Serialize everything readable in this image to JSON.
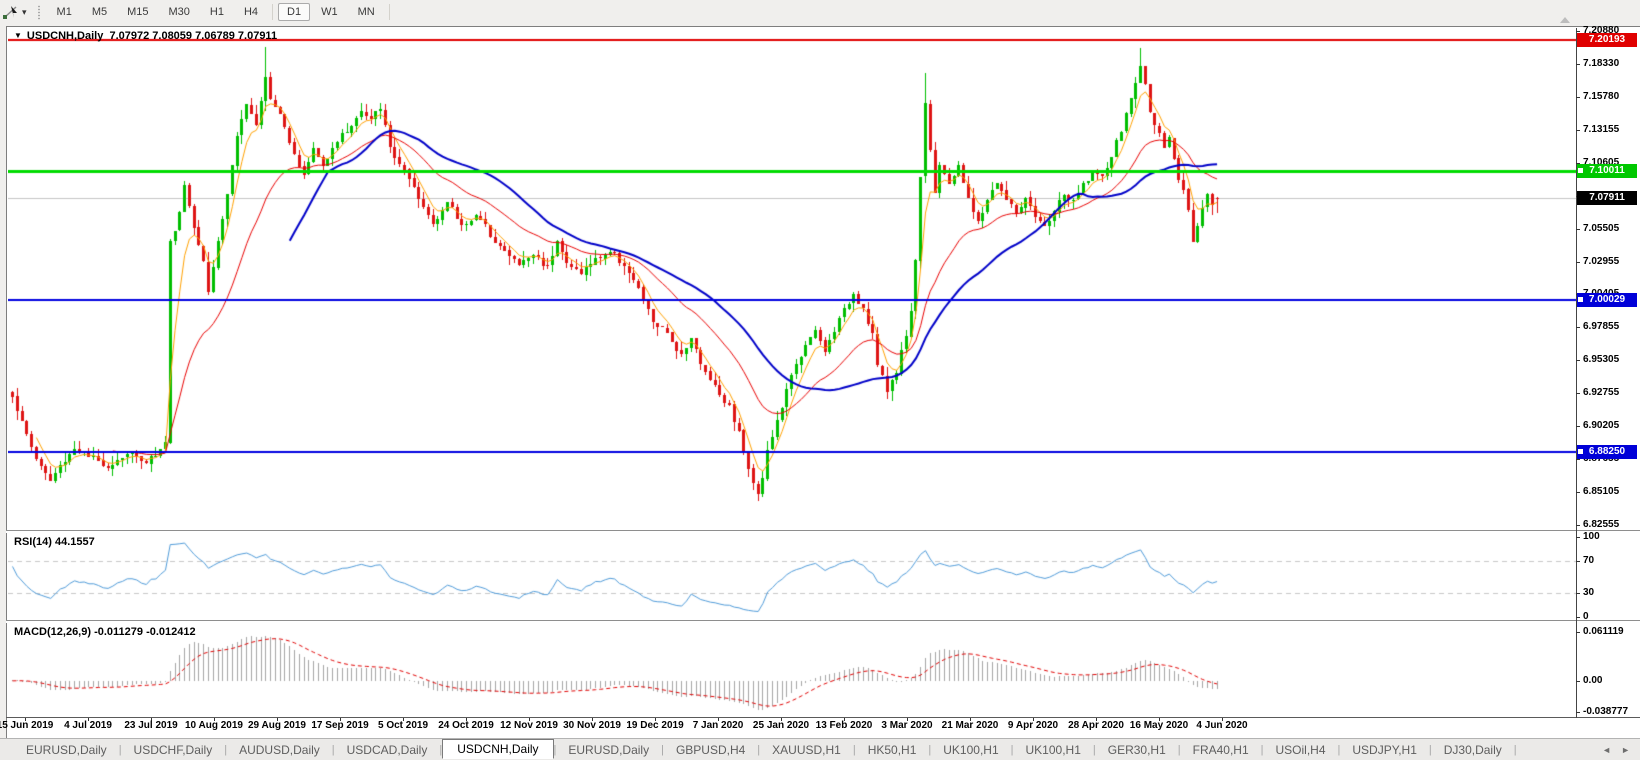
{
  "toolbar": {
    "timeframes": [
      "M1",
      "M5",
      "M15",
      "M30",
      "H1",
      "H4",
      "D1",
      "W1",
      "MN"
    ],
    "active_timeframe": "D1"
  },
  "icons": {
    "line_studies_caret": "▾",
    "chart_dropdown": "▼",
    "tab_left_arrow": "◄",
    "tab_right_arrow": "►"
  },
  "chart": {
    "symbol_label": "USDCNH,Daily",
    "ohlc_text": "7.07972 7.08059 7.06789 7.07911",
    "price_ticks": [
      "7.20880",
      "7.18330",
      "7.15780",
      "7.13155",
      "7.10605",
      "7.08055",
      "7.05505",
      "7.02955",
      "7.00405",
      "6.97855",
      "6.95305",
      "6.92755",
      "6.90205",
      "6.87655",
      "6.85105",
      "6.82555"
    ],
    "date_labels": [
      "15 Jun 2019",
      "4 Jul 2019",
      "23 Jul 2019",
      "10 Aug 2019",
      "29 Aug 2019",
      "17 Sep 2019",
      "5 Oct 2019",
      "24 Oct 2019",
      "12 Nov 2019",
      "30 Nov 2019",
      "19 Dec 2019",
      "7 Jan 2020",
      "25 Jan 2020",
      "13 Feb 2020",
      "3 Mar 2020",
      "21 Mar 2020",
      "9 Apr 2020",
      "28 Apr 2020",
      "16 May 2020",
      "4 Jun 2020"
    ],
    "levels": [
      {
        "name": "resistance-line",
        "label": "7.20193",
        "price": 7.20193,
        "line_color": "#E00000",
        "line_width": 2,
        "badge_bg": "#E00000",
        "marker": false,
        "under": false
      },
      {
        "name": "green-level-line",
        "label": "7.10011",
        "price": 7.10011,
        "line_color": "#00DC00",
        "line_width": 3,
        "badge_bg": "#00C800",
        "marker": true,
        "under": false
      },
      {
        "name": "current-price-line",
        "label": "7.07911",
        "price": 7.07911,
        "line_color": "#C4C4C4",
        "line_width": 1,
        "badge_bg": "#000000",
        "marker": false,
        "under": true
      },
      {
        "name": "support-line-7",
        "label": "7.00029",
        "price": 7.00029,
        "line_color": "#0000E0",
        "line_width": 2,
        "badge_bg": "#0000D8",
        "marker": true,
        "under": false
      },
      {
        "name": "support-line-688",
        "label": "6.88250",
        "price": 6.8825,
        "line_color": "#0000E0",
        "line_width": 2,
        "badge_bg": "#0000D8",
        "marker": true,
        "under": false
      }
    ]
  },
  "rsi_panel": {
    "label": "RSI(14) 44.1557",
    "ticks": [
      {
        "value": 100,
        "label": "100"
      },
      {
        "value": 70,
        "label": "70"
      },
      {
        "value": 30,
        "label": "30"
      },
      {
        "value": 0,
        "label": "0"
      }
    ],
    "level_high": 70,
    "level_low": 30,
    "line_color": "#4E9AD8",
    "level_color": "#C6C6C6"
  },
  "macd_panel": {
    "label": "MACD(12,26,9) -0.011279 -0.012412",
    "ticks": [
      {
        "value": 0.061119,
        "label": "0.061119"
      },
      {
        "value": 0,
        "label": "0.00"
      },
      {
        "value": -0.038777,
        "label": "-0.038777"
      }
    ],
    "hist_color": "#A4A4A4",
    "signal_color": "#E00000"
  },
  "tabs": {
    "items": [
      "EURUSD,Daily",
      "USDCHF,Daily",
      "AUDUSD,Daily",
      "USDCAD,Daily",
      "USDCNH,Daily",
      "EURUSD,Daily",
      "GBPUSD,H4",
      "XAUUSD,H1",
      "HK50,H1",
      "UK100,H1",
      "UK100,H1",
      "GER30,H1",
      "FRA40,H1",
      "USOil,H4",
      "USDJPY,H1",
      "DJ30,Daily"
    ],
    "active_index": 4
  },
  "chart_data": {
    "type": "candlestick",
    "symbol": "USDCNH",
    "timeframe": "Daily",
    "visible_range": {
      "start": "15 Jun 2019",
      "end": "12 Jun 2020"
    },
    "num_candles": 253,
    "current_ohlc": {
      "open": 7.07972,
      "high": 7.08059,
      "low": 7.06789,
      "close": 7.07911
    },
    "last_candle": [
      7.07972,
      7.08059,
      7.06789,
      7.07911
    ],
    "colors": {
      "bull": "#00BE00",
      "bear": "#DE1414"
    },
    "price_path_keypoints": [
      [
        0,
        6.927
      ],
      [
        2,
        6.905
      ],
      [
        5,
        6.878
      ],
      [
        8,
        6.86
      ],
      [
        10,
        6.872
      ],
      [
        13,
        6.886
      ],
      [
        16,
        6.879
      ],
      [
        20,
        6.872
      ],
      [
        24,
        6.882
      ],
      [
        28,
        6.876
      ],
      [
        31,
        6.884
      ],
      [
        32,
        6.892
      ],
      [
        33,
        7.045
      ],
      [
        35,
        7.068
      ],
      [
        36,
        7.09
      ],
      [
        38,
        7.058
      ],
      [
        40,
        7.032
      ],
      [
        41,
        7.008
      ],
      [
        43,
        7.046
      ],
      [
        45,
        7.082
      ],
      [
        47,
        7.128
      ],
      [
        49,
        7.15
      ],
      [
        51,
        7.138
      ],
      [
        53,
        7.174
      ],
      [
        54,
        7.158
      ],
      [
        56,
        7.146
      ],
      [
        58,
        7.124
      ],
      [
        61,
        7.096
      ],
      [
        63,
        7.118
      ],
      [
        65,
        7.104
      ],
      [
        67,
        7.12
      ],
      [
        70,
        7.132
      ],
      [
        73,
        7.146
      ],
      [
        75,
        7.14
      ],
      [
        77,
        7.15
      ],
      [
        79,
        7.118
      ],
      [
        82,
        7.1
      ],
      [
        85,
        7.078
      ],
      [
        88,
        7.06
      ],
      [
        91,
        7.076
      ],
      [
        94,
        7.058
      ],
      [
        97,
        7.066
      ],
      [
        100,
        7.052
      ],
      [
        103,
        7.038
      ],
      [
        106,
        7.028
      ],
      [
        109,
        7.036
      ],
      [
        112,
        7.026
      ],
      [
        114,
        7.048
      ],
      [
        116,
        7.028
      ],
      [
        119,
        7.022
      ],
      [
        122,
        7.032
      ],
      [
        125,
        7.038
      ],
      [
        128,
        7.028
      ],
      [
        131,
        7.008
      ],
      [
        134,
        6.984
      ],
      [
        137,
        6.974
      ],
      [
        140,
        6.958
      ],
      [
        142,
        6.972
      ],
      [
        144,
        6.95
      ],
      [
        146,
        6.94
      ],
      [
        148,
        6.928
      ],
      [
        150,
        6.918
      ],
      [
        152,
        6.898
      ],
      [
        154,
        6.868
      ],
      [
        156,
        6.852
      ],
      [
        157,
        6.864
      ],
      [
        158,
        6.884
      ],
      [
        160,
        6.906
      ],
      [
        162,
        6.93
      ],
      [
        164,
        6.952
      ],
      [
        166,
        6.964
      ],
      [
        168,
        6.976
      ],
      [
        170,
        6.96
      ],
      [
        172,
        6.978
      ],
      [
        174,
        6.992
      ],
      [
        176,
        7.006
      ],
      [
        178,
        6.994
      ],
      [
        180,
        6.974
      ],
      [
        181,
        6.95
      ],
      [
        183,
        6.93
      ],
      [
        185,
        6.946
      ],
      [
        187,
        6.974
      ],
      [
        188,
        6.992
      ],
      [
        189,
        7.032
      ],
      [
        190,
        7.095
      ],
      [
        191,
        7.155
      ],
      [
        192,
        7.118
      ],
      [
        193,
        7.085
      ],
      [
        194,
        7.106
      ],
      [
        196,
        7.088
      ],
      [
        198,
        7.106
      ],
      [
        200,
        7.078
      ],
      [
        202,
        7.06
      ],
      [
        204,
        7.078
      ],
      [
        206,
        7.092
      ],
      [
        208,
        7.078
      ],
      [
        210,
        7.068
      ],
      [
        212,
        7.078
      ],
      [
        214,
        7.064
      ],
      [
        216,
        7.056
      ],
      [
        218,
        7.07
      ],
      [
        220,
        7.082
      ],
      [
        222,
        7.076
      ],
      [
        224,
        7.09
      ],
      [
        226,
        7.1
      ],
      [
        228,
        7.094
      ],
      [
        230,
        7.112
      ],
      [
        232,
        7.132
      ],
      [
        234,
        7.156
      ],
      [
        236,
        7.182
      ],
      [
        237,
        7.166
      ],
      [
        238,
        7.148
      ],
      [
        240,
        7.128
      ],
      [
        241,
        7.116
      ],
      [
        242,
        7.126
      ],
      [
        243,
        7.108
      ],
      [
        244,
        7.094
      ],
      [
        245,
        7.084
      ],
      [
        246,
        7.072
      ],
      [
        247,
        7.046
      ],
      [
        248,
        7.06
      ],
      [
        249,
        7.072
      ],
      [
        250,
        7.082
      ],
      [
        251,
        7.074
      ],
      [
        252,
        7.0791
      ]
    ],
    "wick_overrides": {
      "53": [
        7.1965,
        null
      ],
      "156": [
        null,
        6.845
      ],
      "191": [
        7.176,
        null
      ],
      "236": [
        7.196,
        null
      ]
    },
    "moving_averages": [
      {
        "name": "ema-fast",
        "type": "ema",
        "period": 5,
        "color": "#FFA000",
        "width": 1,
        "draw_from": 5
      },
      {
        "name": "ema-mid",
        "type": "ema",
        "period": 21,
        "color": "#E80000",
        "width": 1,
        "draw_from": 21
      },
      {
        "name": "sma-slow",
        "type": "sma",
        "period": 34,
        "color": "#0000C8",
        "width": 2,
        "draw_from": 58
      }
    ],
    "rsi": {
      "period": 14,
      "current": 44.1557
    },
    "macd": {
      "fast": 12,
      "slow": 26,
      "signal": 9,
      "current": -0.011279,
      "signal_current": -0.012412
    }
  }
}
